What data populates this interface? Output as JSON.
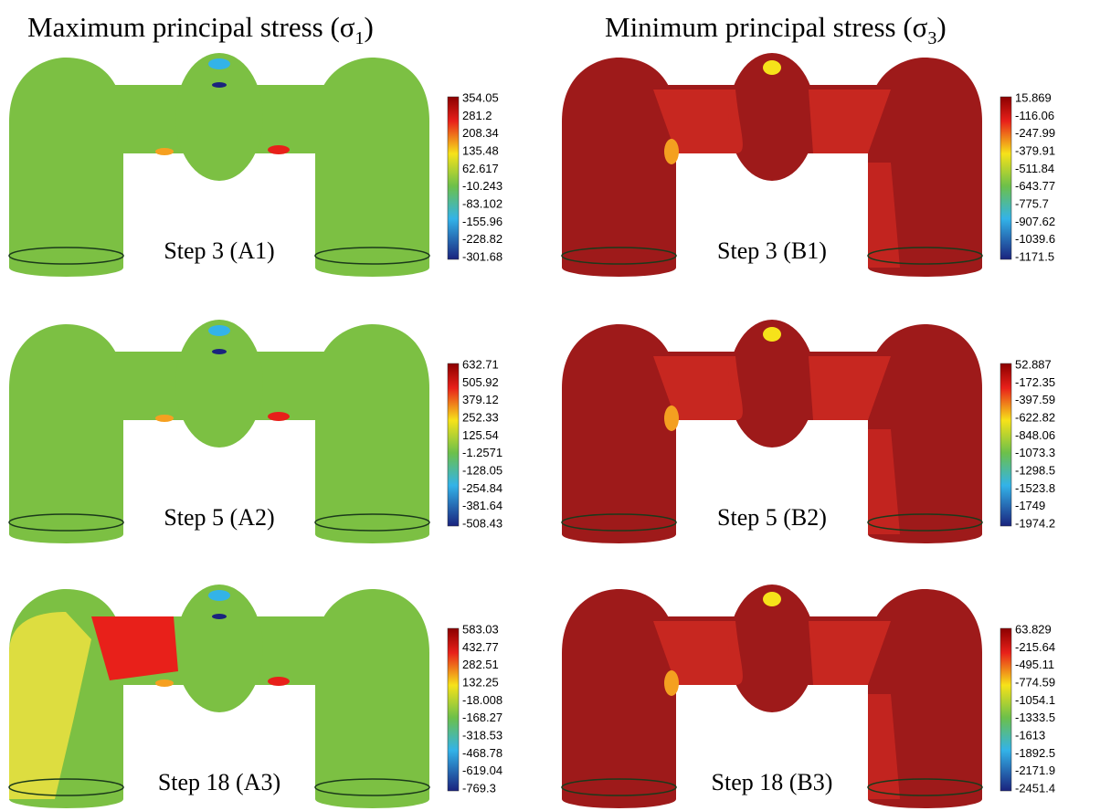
{
  "titles": [
    {
      "text": "Maximum principal stress (σ",
      "subscript": "1",
      "close": ")"
    },
    {
      "text": "Minimum principal stress (σ",
      "subscript": "3",
      "close": ")"
    }
  ],
  "panels": [
    {
      "label": "Step 3 (A1)",
      "colorbar": [
        "354.05",
        "281.2",
        "208.34",
        "135.48",
        "62.617",
        "-10.243",
        "-83.102",
        "-155.96",
        "-228.82",
        "-301.68"
      ]
    },
    {
      "label": "Step 5 (A2)",
      "colorbar": [
        "632.71",
        "505.92",
        "379.12",
        "252.33",
        "125.54",
        "-1.2571",
        "-128.05",
        "-254.84",
        "-381.64",
        "-508.43"
      ]
    },
    {
      "label": "Step 18 (A3)",
      "colorbar": [
        "583.03",
        "432.77",
        "282.51",
        "132.25",
        "-18.008",
        "-168.27",
        "-318.53",
        "-468.78",
        "-619.04",
        "-769.3"
      ]
    },
    {
      "label": "Step 3 (B1)",
      "colorbar": [
        "15.869",
        "-116.06",
        "-247.99",
        "-379.91",
        "-511.84",
        "-643.77",
        "-775.7",
        "-907.62",
        "-1039.6",
        "-1171.5"
      ]
    },
    {
      "label": "Step 5 (B2)",
      "colorbar": [
        "52.887",
        "-172.35",
        "-397.59",
        "-622.82",
        "-848.06",
        "-1073.3",
        "-1298.5",
        "-1523.8",
        "-1749",
        "-1974.2"
      ]
    },
    {
      "label": "Step 18 (B3)",
      "colorbar": [
        "63.829",
        "-215.64",
        "-495.11",
        "-774.59",
        "-1054.1",
        "-1333.5",
        "-1613",
        "-1892.5",
        "-2171.9",
        "-2451.4"
      ]
    }
  ]
}
